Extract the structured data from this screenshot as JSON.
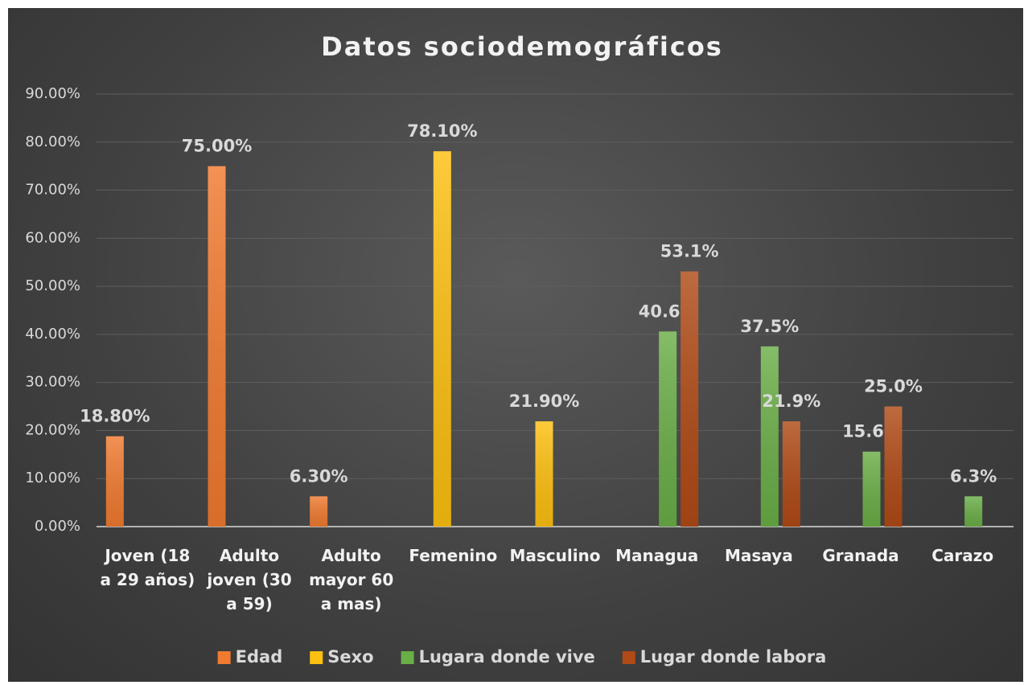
{
  "chart_data": {
    "type": "bar",
    "title": "Datos sociodemográficos",
    "categories": [
      "Joven (18 a 29 años)",
      "Adulto joven (30 a 59)",
      "Adulto mayor 60 a mas)",
      "Femenino",
      "Masculino",
      "Managua",
      "Masaya",
      "Granada",
      "Carazo"
    ],
    "series": [
      {
        "name": "Edad",
        "color": "#f07a30",
        "values": [
          18.8,
          75.0,
          6.3,
          null,
          null,
          null,
          null,
          null,
          null
        ],
        "value_labels": [
          "18.80%",
          "75.00%",
          "6.30%",
          null,
          null,
          null,
          null,
          null,
          null
        ]
      },
      {
        "name": "Sexo",
        "color": "#fdc010",
        "values": [
          null,
          null,
          null,
          78.1,
          21.9,
          null,
          null,
          null,
          null
        ],
        "value_labels": [
          null,
          null,
          null,
          "78.10%",
          "21.90%",
          null,
          null,
          null,
          null
        ]
      },
      {
        "name": "Lugara donde vive",
        "color": "#6aae47",
        "values": [
          null,
          null,
          null,
          null,
          null,
          40.6,
          37.5,
          15.6,
          6.3
        ],
        "value_labels": [
          null,
          null,
          null,
          null,
          null,
          "40.6%",
          "37.5%",
          "15.6%",
          "6.3%"
        ]
      },
      {
        "name": "Lugar donde labora",
        "color": "#b04a16",
        "values": [
          null,
          null,
          null,
          null,
          null,
          53.1,
          21.9,
          25.0,
          null
        ],
        "value_labels": [
          null,
          null,
          null,
          null,
          null,
          "53.1%",
          "21.9%",
          "25.0%",
          null
        ]
      }
    ],
    "ylim": [
      0,
      90
    ],
    "yticks": [
      {
        "value": 0,
        "label": "0.00%"
      },
      {
        "value": 10,
        "label": "10.00%"
      },
      {
        "value": 20,
        "label": "20.00%"
      },
      {
        "value": 30,
        "label": "30.00%"
      },
      {
        "value": 40,
        "label": "40.00%"
      },
      {
        "value": 50,
        "label": "50.00%"
      },
      {
        "value": 60,
        "label": "60.00%"
      },
      {
        "value": 70,
        "label": "70.00%"
      },
      {
        "value": 80,
        "label": "80.00%"
      },
      {
        "value": 90,
        "label": "90.00%"
      }
    ],
    "grid": true,
    "legend": "bottom"
  }
}
